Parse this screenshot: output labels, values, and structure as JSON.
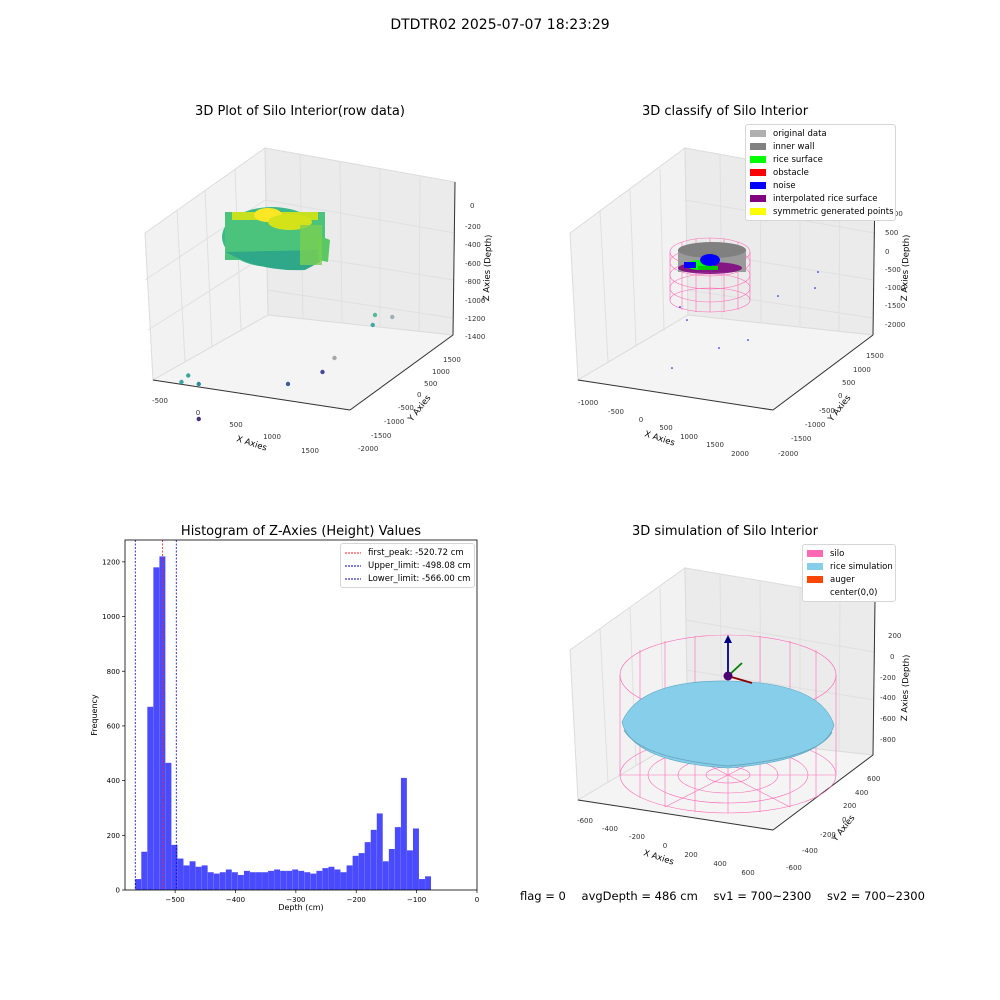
{
  "suptitle": "DTDTR02 2025-07-07 18:23:29",
  "chart_data": [
    {
      "type": "scatter",
      "title": "3D Plot of Silo Interior(row data)",
      "xlabel": "X Axies",
      "ylabel": "Y Axies",
      "zlabel": "Z Axies (Depth)",
      "x_ticks": [
        "-500",
        "0",
        "500",
        "1000",
        "1500"
      ],
      "y_ticks": [
        "-2000",
        "-1500",
        "-1000",
        "-500",
        "0",
        "500",
        "1000",
        "1500"
      ],
      "z_ticks": [
        "-1400",
        "-1200",
        "-1000",
        "-800",
        "-600",
        "-400",
        "-200",
        "0"
      ],
      "outlier_points": [
        {
          "x": -300,
          "y": 100,
          "z": -950
        },
        {
          "x": -250,
          "y": 150,
          "z": -900
        },
        {
          "x": -150,
          "y": 200,
          "z": -1050
        },
        {
          "x": 1400,
          "y": 1200,
          "z": -950
        },
        {
          "x": 1450,
          "y": 1100,
          "z": -1050
        },
        {
          "x": 1550,
          "y": 1300,
          "z": -1050
        },
        {
          "x": 1100,
          "y": 900,
          "z": -1300
        },
        {
          "x": 800,
          "y": 500,
          "z": -1400
        },
        {
          "x": 1100,
          "y": 700,
          "z": -1400
        },
        {
          "x": 250,
          "y": -300,
          "z": -1400
        }
      ]
    },
    {
      "type": "scatter",
      "title": "3D classify of Silo Interior",
      "xlabel": "X Axies",
      "ylabel": "Y Axies",
      "zlabel": "Z Axies (Depth)",
      "x_ticks": [
        "-1000",
        "-500",
        "0",
        "500",
        "1000",
        "1500",
        "2000"
      ],
      "y_ticks": [
        "-2000",
        "-1500",
        "-1000",
        "-500",
        "0",
        "500",
        "1000",
        "1500"
      ],
      "z_ticks": [
        "-2000",
        "-1500",
        "-1000",
        "-500",
        "0",
        "500",
        "1000"
      ],
      "legend": [
        {
          "label": "original data",
          "color": "#b0b0b0"
        },
        {
          "label": "inner wall",
          "color": "#808080"
        },
        {
          "label": "rice surface",
          "color": "#00ff00"
        },
        {
          "label": "obstacle",
          "color": "#ff0000"
        },
        {
          "label": "noise",
          "color": "#0000ff"
        },
        {
          "label": "interpolated rice surface",
          "color": "#800080"
        },
        {
          "label": "symmetric generated points",
          "color": "#ffff00"
        }
      ],
      "legend_position": "top-right"
    },
    {
      "type": "bar",
      "title": "Histogram of Z-Axies (Height) Values",
      "xlabel": "Depth (cm)",
      "ylabel": "Frequency",
      "xlim": [
        -583,
        0
      ],
      "ylim": [
        0,
        1280
      ],
      "x_ticks": [
        -500,
        -400,
        -300,
        -200,
        -100,
        0
      ],
      "y_ticks": [
        0,
        200,
        400,
        600,
        800,
        1000,
        1200
      ],
      "bin_width": 10,
      "bin_start": -566,
      "values": [
        40,
        140,
        670,
        1180,
        1220,
        465,
        165,
        115,
        90,
        105,
        85,
        90,
        65,
        60,
        65,
        75,
        65,
        55,
        70,
        65,
        65,
        65,
        70,
        75,
        70,
        70,
        75,
        70,
        65,
        60,
        70,
        80,
        85,
        75,
        65,
        90,
        125,
        135,
        175,
        220,
        280,
        105,
        150,
        230,
        410,
        145,
        225,
        40,
        50
      ],
      "bar_color": "#4a4aff",
      "vlines": [
        {
          "label": "first_peak: -520.72 cm",
          "value": -520.72,
          "color": "#ff2020"
        },
        {
          "label": "Upper_limit: -498.08 cm",
          "value": -498.08,
          "color": "#0000cc"
        },
        {
          "label": "Lower_limit: -566.00 cm",
          "value": -566.0,
          "color": "#0000cc"
        }
      ],
      "legend_position": "top-right"
    },
    {
      "type": "scatter",
      "title": "3D simulation of Silo Interior",
      "xlabel": "X Axies",
      "ylabel": "Y Axies",
      "zlabel": "Z Axies (Depth)",
      "x_ticks": [
        "-600",
        "-400",
        "-200",
        "0",
        "200",
        "400",
        "600"
      ],
      "y_ticks": [
        "-600",
        "-400",
        "-200",
        "0",
        "200",
        "400",
        "600"
      ],
      "z_ticks": [
        "-800",
        "-600",
        "-400",
        "-200",
        "0",
        "200"
      ],
      "legend": [
        {
          "label": "silo",
          "color": "#ff69b4"
        },
        {
          "label": "rice simulation",
          "color": "#87ceeb"
        },
        {
          "label": "auger",
          "color": "#ff4500"
        },
        {
          "label": "center(0,0)",
          "color": ""
        }
      ],
      "legend_position": "top-right"
    }
  ],
  "footer": {
    "flag": "flag = 0",
    "avg_depth": "avgDepth = 486 cm",
    "sv1": "sv1 = 700~2300",
    "sv2": "sv2 = 700~2300"
  }
}
